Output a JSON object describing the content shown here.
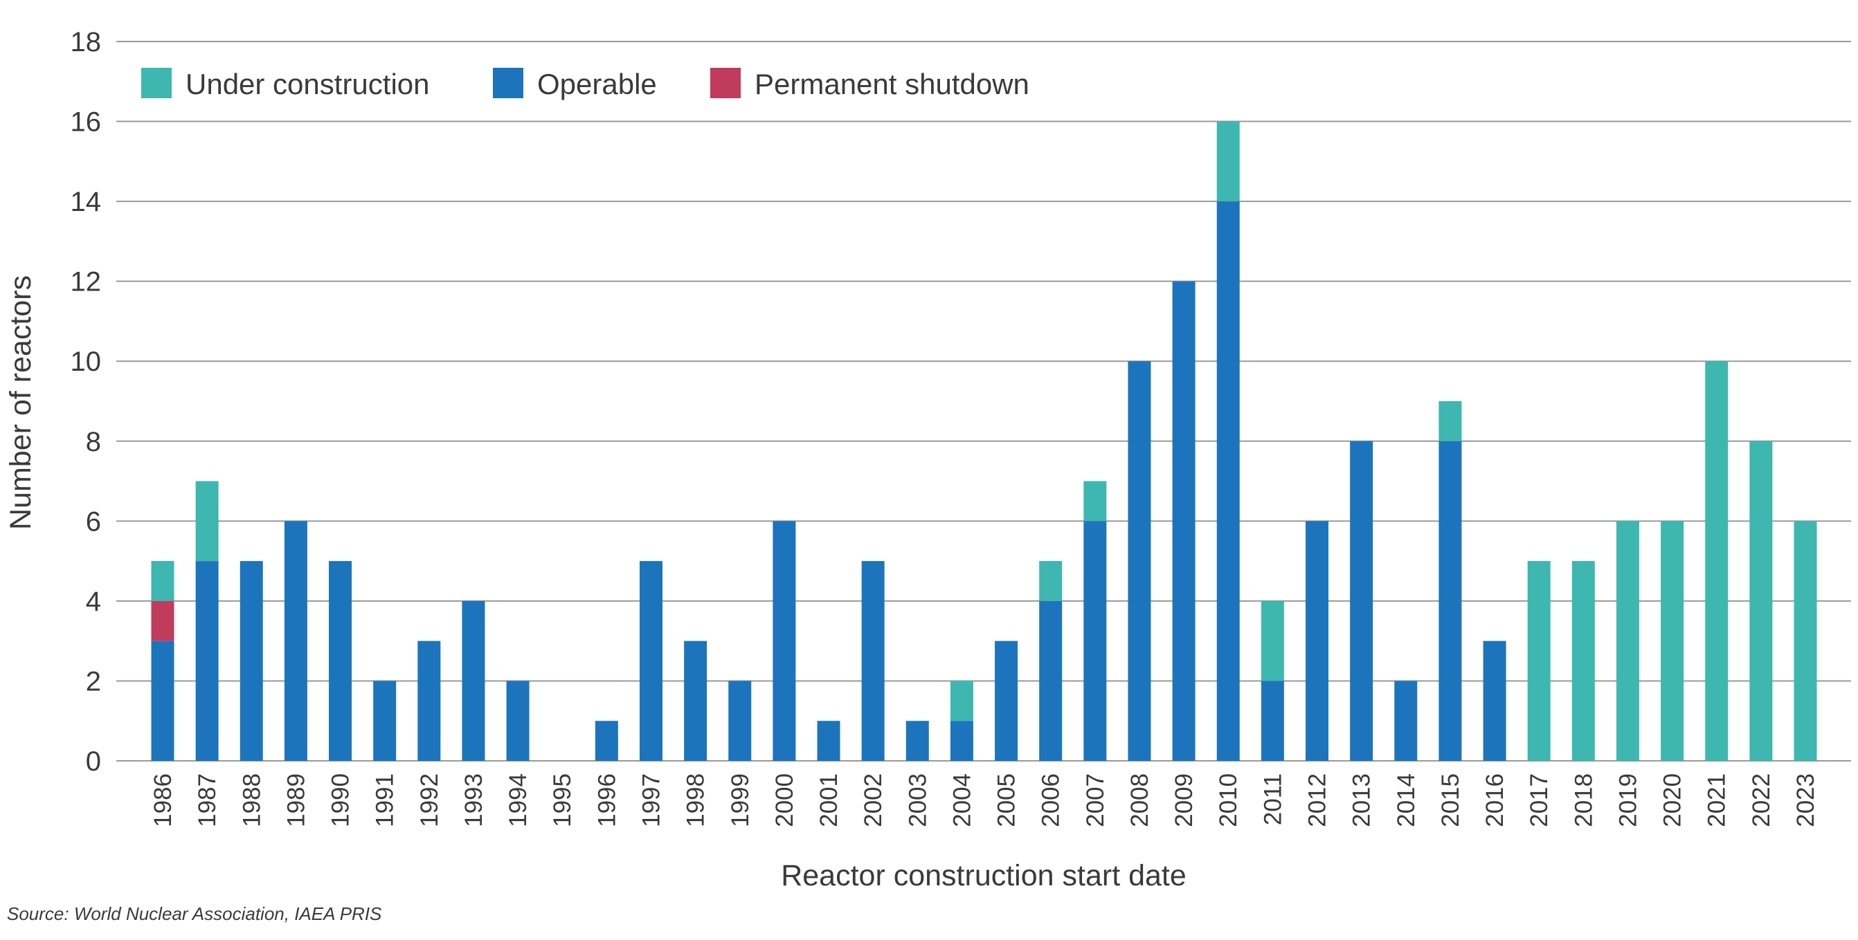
{
  "chart_data": {
    "type": "bar",
    "stacked": true,
    "title": "",
    "xlabel": "Reactor construction start date",
    "ylabel": "Number of reactors",
    "ylim": [
      0,
      18
    ],
    "yticks": [
      0,
      2,
      4,
      6,
      8,
      10,
      12,
      14,
      16,
      18
    ],
    "grid": true,
    "legend_position": "top-left",
    "categories": [
      "1986",
      "1987",
      "1988",
      "1989",
      "1990",
      "1991",
      "1992",
      "1993",
      "1994",
      "1995",
      "1996",
      "1997",
      "1998",
      "1999",
      "2000",
      "2001",
      "2002",
      "2003",
      "2004",
      "2005",
      "2006",
      "2007",
      "2008",
      "2009",
      "2010",
      "2011",
      "2012",
      "2013",
      "2014",
      "2015",
      "2016",
      "2017",
      "2018",
      "2019",
      "2020",
      "2021",
      "2022",
      "2023"
    ],
    "series": [
      {
        "name": "Operable",
        "color": "#1c75bc",
        "values": [
          3,
          5,
          5,
          6,
          5,
          2,
          3,
          4,
          2,
          0,
          1,
          5,
          3,
          2,
          6,
          1,
          5,
          1,
          1,
          3,
          4,
          6,
          10,
          12,
          14,
          2,
          6,
          8,
          2,
          8,
          3,
          0,
          0,
          0,
          0,
          0,
          0,
          0
        ]
      },
      {
        "name": "Permanent shutdown",
        "color": "#c13b5c",
        "values": [
          1,
          0,
          0,
          0,
          0,
          0,
          0,
          0,
          0,
          0,
          0,
          0,
          0,
          0,
          0,
          0,
          0,
          0,
          0,
          0,
          0,
          0,
          0,
          0,
          0,
          0,
          0,
          0,
          0,
          0,
          0,
          0,
          0,
          0,
          0,
          0,
          0,
          0
        ]
      },
      {
        "name": "Under construction",
        "color": "#3db7b0",
        "values": [
          1,
          2,
          0,
          0,
          0,
          0,
          0,
          0,
          0,
          0,
          0,
          0,
          0,
          0,
          0,
          0,
          0,
          0,
          1,
          0,
          1,
          1,
          0,
          0,
          2,
          2,
          0,
          0,
          0,
          1,
          0,
          5,
          5,
          6,
          6,
          10,
          8,
          6
        ]
      }
    ],
    "legend": [
      "Under construction",
      "Operable",
      "Permanent shutdown"
    ],
    "source": "Source: World Nuclear Association, IAEA PRIS"
  }
}
